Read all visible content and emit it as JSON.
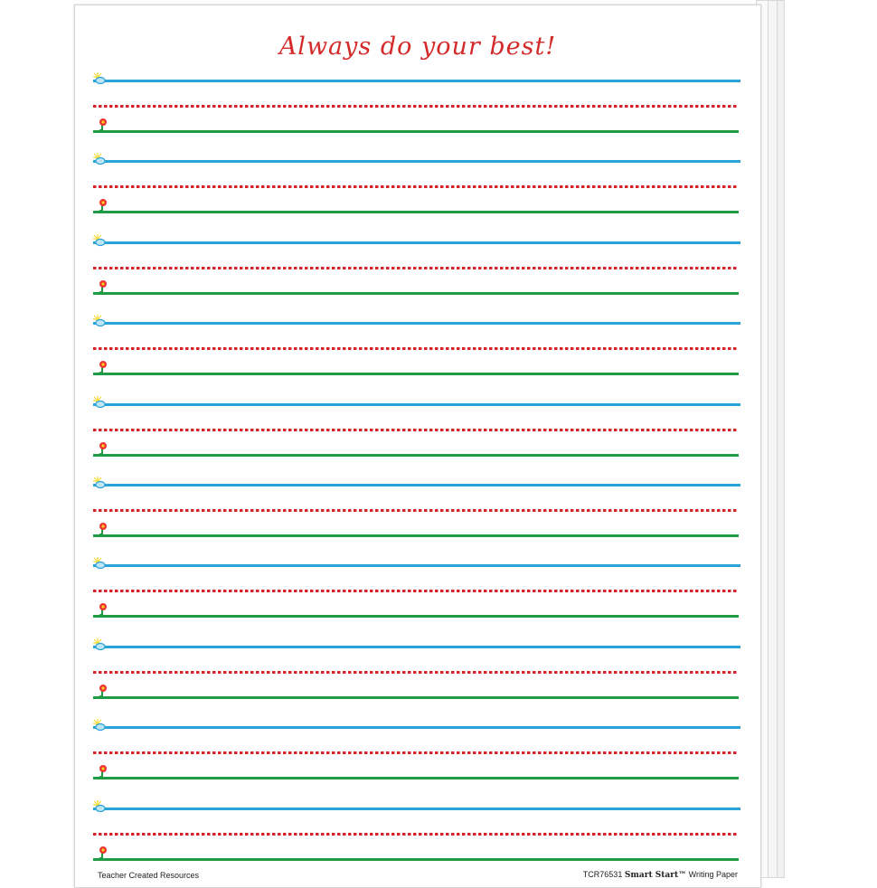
{
  "title": "Always do your best!",
  "rows": 10,
  "colors": {
    "top_line": "#2aa3d8",
    "mid_line": "#d4242a",
    "base_line": "#1f9a45",
    "title": "#d42a2a"
  },
  "icons": {
    "top": "sun-cloud-icon",
    "base": "flower-icon"
  },
  "footer": {
    "publisher": "Teacher Created Resources",
    "product_code": "TCR76531",
    "brand": "Smart Start™",
    "product_name": "Writing Paper"
  }
}
